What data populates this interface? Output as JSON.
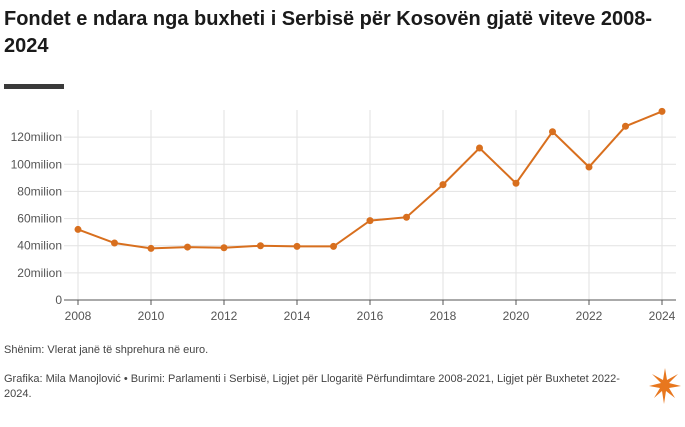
{
  "title": "Fondet e ndara nga buxheti i Serbisë për Kosovën gjatë viteve 2008-2024",
  "note": "Shënim: Vlerat janë të shprehura në euro.",
  "credits": "Grafika: Mila Manojlović • Burimi: Parlamenti i Serbisë, Ligjet për Llogaritë Përfundimtare 2008-2021, Ligjet për Buxhetet 2022-2024.",
  "logo_icon": "rfe-rl-logo-icon",
  "colors": {
    "line": "#d86f1e",
    "grid": "#e2e2e2",
    "axis": "#555555"
  },
  "chart_data": {
    "type": "line",
    "title": "",
    "xlabel": "",
    "ylabel": "",
    "x": [
      2008,
      2009,
      2010,
      2011,
      2012,
      2013,
      2014,
      2015,
      2016,
      2017,
      2018,
      2019,
      2020,
      2021,
      2022,
      2023,
      2024
    ],
    "series": [
      {
        "values": [
          52,
          42,
          38,
          39,
          38.5,
          40,
          39.5,
          39.5,
          58.5,
          61,
          85,
          112,
          86,
          124,
          98,
          128,
          139
        ]
      }
    ],
    "xlim": [
      2008,
      2024
    ],
    "ylim": [
      0,
      140
    ],
    "x_ticks": [
      "2008",
      "2010",
      "2012",
      "2014",
      "2016",
      "2018",
      "2020",
      "2022",
      "2024"
    ],
    "y_ticks": [
      "0",
      "20milion",
      "40milion",
      "60milion",
      "80milion",
      "100milion",
      "120milion"
    ],
    "grid": true,
    "legend": "none"
  }
}
